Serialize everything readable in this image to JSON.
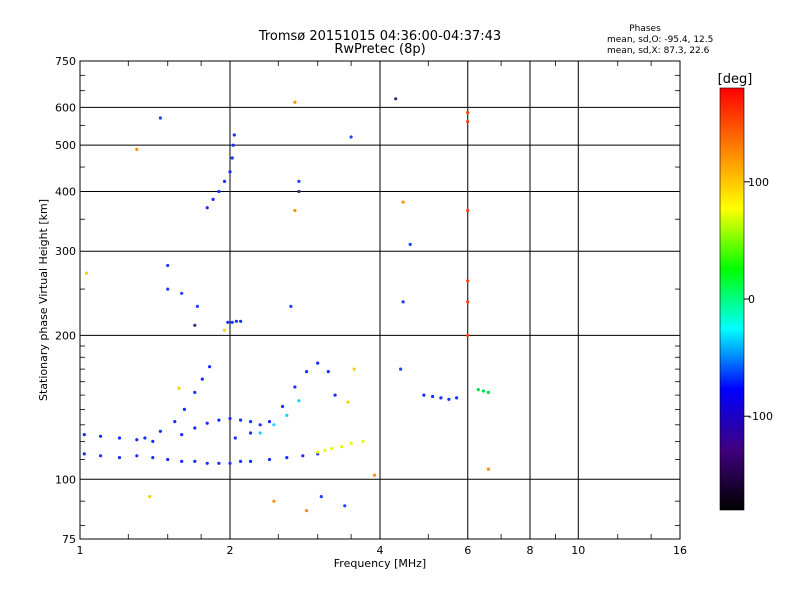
{
  "chart_data": {
    "type": "scatter",
    "title": "Tromsø 20151015 04:36:00-04:37:43",
    "subtitle": "RwPretec (8p)",
    "xlabel": "Frequency [MHz]",
    "ylabel": "Stationary phase Virtual Height [km]",
    "x_scale": "log",
    "y_scale": "log",
    "xlim": [
      1,
      16
    ],
    "ylim": [
      75,
      750
    ],
    "x_ticks": [
      1,
      2,
      4,
      6,
      8,
      10,
      16
    ],
    "x_tick_labels": [
      "1",
      "2",
      "4",
      "6",
      "8",
      "10",
      "16"
    ],
    "y_ticks": [
      75,
      100,
      200,
      300,
      400,
      500,
      600,
      750
    ],
    "y_tick_labels": [
      "75",
      "100",
      "200",
      "300",
      "400",
      "500",
      "600",
      "750"
    ],
    "grid": true,
    "stats": {
      "heading": "Phases",
      "line_o": "mean, sd,O: -95.4, 12.5",
      "line_x": "mean, sd,X: 87.3, 22.6"
    },
    "colorbar": {
      "label": "[deg]",
      "range": [
        -180,
        180
      ],
      "ticks": [
        100,
        0,
        -100
      ],
      "tick_labels": [
        "100",
        "0",
        "-100"
      ],
      "colors": [
        "#ff0000",
        "#ff8000",
        "#ffff00",
        "#00ff00",
        "#00ffff",
        "#0000ff",
        "#400080",
        "#000000"
      ]
    },
    "traces": [
      {
        "name": "",
        "color": "#1a2cff",
        "phase": -95,
        "points": [
          [
            1.02,
            113
          ],
          [
            1.1,
            112
          ],
          [
            1.2,
            111
          ],
          [
            1.3,
            112
          ],
          [
            1.4,
            111
          ],
          [
            1.5,
            110
          ],
          [
            1.6,
            109
          ],
          [
            1.7,
            109
          ],
          [
            1.8,
            108
          ],
          [
            1.9,
            108
          ],
          [
            2.0,
            108
          ],
          [
            2.1,
            109
          ],
          [
            2.2,
            109
          ],
          [
            2.4,
            110
          ],
          [
            2.6,
            111
          ],
          [
            2.8,
            112
          ],
          [
            3.0,
            113
          ]
        ]
      },
      {
        "name": "",
        "color": "#1a2cff",
        "phase": -95,
        "points": [
          [
            1.02,
            124
          ],
          [
            1.1,
            123
          ],
          [
            1.2,
            122
          ],
          [
            1.3,
            121
          ],
          [
            1.4,
            120
          ]
        ]
      },
      {
        "name": "",
        "color": "#1a2cff",
        "phase": -95,
        "points": [
          [
            1.35,
            122
          ],
          [
            1.45,
            126
          ],
          [
            1.55,
            132
          ],
          [
            1.62,
            140
          ],
          [
            1.7,
            152
          ],
          [
            1.76,
            162
          ],
          [
            1.82,
            172
          ]
        ]
      },
      {
        "name": "",
        "color": "#1a2cff",
        "phase": -95,
        "points": [
          [
            1.6,
            124
          ],
          [
            1.7,
            128
          ],
          [
            1.8,
            131
          ],
          [
            1.9,
            133
          ],
          [
            2.0,
            134
          ],
          [
            2.1,
            133
          ],
          [
            2.2,
            132
          ],
          [
            2.3,
            130
          ]
        ]
      },
      {
        "name": "",
        "color": "#1a2cff",
        "phase": -95,
        "points": [
          [
            2.05,
            122
          ],
          [
            2.2,
            125
          ],
          [
            2.4,
            132
          ],
          [
            2.55,
            142
          ],
          [
            2.7,
            156
          ],
          [
            2.85,
            168
          ],
          [
            3.0,
            175
          ],
          [
            3.15,
            168
          ],
          [
            3.25,
            150
          ]
        ]
      },
      {
        "name": "",
        "color": "#1a2cff",
        "phase": -95,
        "points": [
          [
            1.8,
            370
          ],
          [
            1.85,
            385
          ],
          [
            1.9,
            400
          ],
          [
            1.95,
            420
          ],
          [
            2.0,
            440
          ],
          [
            2.02,
            470
          ],
          [
            2.03,
            500
          ],
          [
            2.04,
            525
          ]
        ]
      },
      {
        "name": "",
        "color": "#1a2cff",
        "phase": -95,
        "points": [
          [
            1.98,
            213
          ],
          [
            2.02,
            213
          ],
          [
            2.06,
            214
          ],
          [
            2.1,
            214
          ]
        ]
      },
      {
        "name": "",
        "color": "#1a2cff",
        "phase": -95,
        "points": [
          [
            4.9,
            150
          ],
          [
            5.1,
            149
          ],
          [
            5.3,
            148
          ],
          [
            5.5,
            147
          ],
          [
            5.7,
            148
          ]
        ]
      },
      {
        "name": "",
        "color": "#e6ff00",
        "phase": 95,
        "points": [
          [
            3.0,
            114
          ],
          [
            3.1,
            115
          ],
          [
            3.2,
            116
          ],
          [
            3.35,
            117
          ],
          [
            3.5,
            119
          ],
          [
            3.7,
            120
          ]
        ]
      },
      {
        "name": "",
        "color": "#00e040",
        "phase": 15,
        "points": [
          [
            6.3,
            154
          ],
          [
            6.45,
            153
          ],
          [
            6.6,
            152
          ]
        ]
      },
      {
        "name": "",
        "color": "#20d0ff",
        "phase": -40,
        "points": [
          [
            2.3,
            125
          ],
          [
            2.45,
            130
          ],
          [
            2.6,
            136
          ],
          [
            2.75,
            146
          ]
        ]
      },
      {
        "name": "",
        "color": "#ff4000",
        "phase": 170,
        "points": [
          [
            6.0,
            585
          ],
          [
            6.0,
            560
          ],
          [
            6.0,
            365
          ],
          [
            6.0,
            260
          ],
          [
            6.0,
            235
          ],
          [
            6.0,
            200
          ]
        ]
      },
      {
        "name": "",
        "color": "#ff9000",
        "phase": 130,
        "points": [
          [
            1.3,
            490
          ],
          [
            2.7,
            615
          ],
          [
            2.7,
            365
          ],
          [
            4.45,
            380
          ],
          [
            6.6,
            105
          ],
          [
            3.9,
            102
          ],
          [
            2.45,
            90
          ],
          [
            2.85,
            86
          ]
        ]
      },
      {
        "name": "",
        "color": "#ffd000",
        "phase": 110,
        "points": [
          [
            1.03,
            270
          ],
          [
            1.38,
            92
          ],
          [
            1.58,
            155
          ],
          [
            1.95,
            205
          ],
          [
            3.55,
            170
          ],
          [
            3.45,
            145
          ]
        ]
      },
      {
        "name": "",
        "color": "#2040ff",
        "phase": -90,
        "points": [
          [
            1.45,
            570
          ],
          [
            1.5,
            280
          ],
          [
            1.5,
            250
          ],
          [
            1.6,
            245
          ],
          [
            1.72,
            230
          ],
          [
            2.65,
            230
          ],
          [
            2.75,
            420
          ],
          [
            3.5,
            520
          ],
          [
            4.45,
            235
          ],
          [
            4.6,
            310
          ],
          [
            4.4,
            170
          ],
          [
            3.05,
            92
          ],
          [
            3.4,
            88
          ]
        ]
      },
      {
        "name": "",
        "color": "#303080",
        "phase": -130,
        "points": [
          [
            4.3,
            625
          ],
          [
            2.75,
            400
          ],
          [
            1.7,
            210
          ]
        ]
      }
    ]
  }
}
